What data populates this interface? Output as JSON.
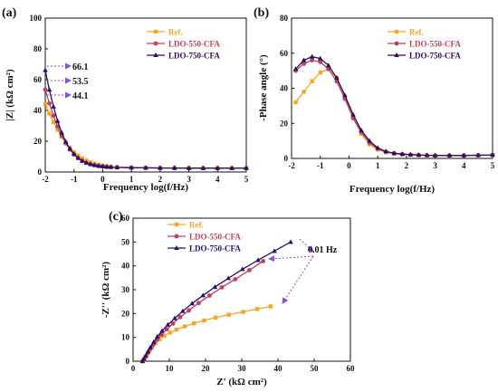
{
  "colors": {
    "ref": "#f5a623",
    "ldo550": "#c0405e",
    "ldo750": "#2a0f6b",
    "arrow": "#8a4de0"
  },
  "chart_data": [
    {
      "type": "line",
      "panel": "(a)",
      "xlabel": "Frequency log(f/Hz)",
      "ylabel": "|Z| (kΩ cm²)",
      "xlim": [
        -2,
        5
      ],
      "ylim": [
        0,
        100
      ],
      "xticks": [
        "-2",
        "-1",
        "0",
        "1",
        "2",
        "3",
        "4",
        "5"
      ],
      "yticks": [
        "0",
        "20",
        "40",
        "60",
        "80",
        "100"
      ],
      "legend_position": "top-right",
      "x": [
        -2.0,
        -1.857,
        -1.714,
        -1.571,
        -1.429,
        -1.286,
        -1.143,
        -1.0,
        -0.857,
        -0.714,
        -0.571,
        -0.429,
        -0.286,
        -0.143,
        0.0,
        0.143,
        0.286,
        0.5,
        1.0,
        1.5,
        2.0,
        2.5,
        3.0,
        3.5,
        4.0,
        4.5,
        5.0
      ],
      "series": [
        {
          "name": "Ref.",
          "marker": "square",
          "values": [
            44.1,
            38.0,
            32.4,
            27.4,
            22.9,
            19.0,
            15.8,
            13.0,
            10.7,
            8.9,
            7.5,
            6.3,
            5.4,
            4.7,
            4.2,
            3.8,
            3.5,
            3.2,
            2.9,
            2.8,
            2.7,
            2.6,
            2.6,
            2.5,
            2.5,
            2.5,
            2.5
          ]
        },
        {
          "name": "LDO-550-CFA",
          "marker": "circle",
          "values": [
            53.5,
            44.6,
            36.6,
            29.6,
            23.6,
            18.6,
            14.6,
            11.4,
            9.0,
            7.1,
            5.9,
            5.0,
            4.4,
            3.9,
            3.6,
            3.3,
            3.1,
            3.0,
            2.8,
            2.7,
            2.6,
            2.6,
            2.5,
            2.5,
            2.5,
            2.5,
            2.5
          ]
        },
        {
          "name": "LDO-750-CFA",
          "marker": "triangle",
          "values": [
            66.1,
            53.4,
            42.4,
            33.1,
            25.6,
            19.7,
            15.1,
            11.7,
            9.1,
            7.3,
            6.0,
            5.1,
            4.5,
            4.0,
            3.7,
            3.4,
            3.2,
            3.0,
            2.8,
            2.7,
            2.6,
            2.6,
            2.5,
            2.5,
            2.5,
            2.5,
            2.5
          ]
        }
      ],
      "annotations": [
        "66.1",
        "53.5",
        "44.1"
      ]
    },
    {
      "type": "line",
      "panel": "(b)",
      "xlabel": "Frequency log(f/Hz)",
      "ylabel": "-Phase angle (°)",
      "xlim": [
        -2,
        5
      ],
      "ylim": [
        0,
        80
      ],
      "xticks": [
        "-2",
        "-1",
        "0",
        "1",
        "2",
        "3",
        "4",
        "5"
      ],
      "yticks": [
        "0",
        "20",
        "40",
        "60",
        "80"
      ],
      "legend_position": "top-right",
      "x": [
        -1.857,
        -1.571,
        -1.286,
        -1.0,
        -0.714,
        -0.429,
        -0.143,
        0.143,
        0.429,
        0.714,
        1.0,
        1.286,
        1.571,
        1.857,
        2.143,
        2.429,
        2.714,
        3.0,
        3.5,
        4.0,
        4.5,
        5.0
      ],
      "series": [
        {
          "name": "Ref.",
          "marker": "square",
          "values": [
            32,
            38,
            44,
            49,
            51,
            46,
            35,
            23,
            14,
            8,
            5,
            3.5,
            2.8,
            2.3,
            2.0,
            1.8,
            1.7,
            1.6,
            1.6,
            1.7,
            1.8,
            2.0
          ]
        },
        {
          "name": "LDO-550-CFA",
          "marker": "circle",
          "values": [
            50,
            54,
            56,
            55,
            51,
            44,
            34,
            23,
            15,
            9,
            5.5,
            3.8,
            2.9,
            2.4,
            2.1,
            1.9,
            1.8,
            1.7,
            1.7,
            1.7,
            1.8,
            2.0
          ]
        },
        {
          "name": "LDO-750-CFA",
          "marker": "triangle",
          "values": [
            51,
            56,
            58,
            57,
            53,
            46,
            36,
            25,
            16,
            10,
            6,
            4,
            3,
            2.5,
            2.2,
            2.0,
            1.8,
            1.7,
            1.7,
            1.7,
            1.8,
            2.0
          ]
        }
      ]
    },
    {
      "type": "line",
      "panel": "(c)",
      "xlabel": "Z' (kΩ cm²)",
      "ylabel": "-Z'' (kΩ cm²)",
      "xlim": [
        0,
        60
      ],
      "ylim": [
        0,
        60
      ],
      "xticks": [
        "0",
        "10",
        "20",
        "30",
        "40",
        "50",
        "60"
      ],
      "yticks": [
        "0",
        "10",
        "20",
        "30",
        "40",
        "50",
        "60"
      ],
      "legend_position": "top-left",
      "annotation": "0.01 Hz",
      "series": [
        {
          "name": "Ref.",
          "marker": "square",
          "x": [
            2.6,
            3.0,
            3.5,
            4.0,
            4.6,
            5.3,
            6.2,
            7.3,
            8.6,
            10.2,
            12.0,
            14.2,
            16.8,
            19.6,
            22.8,
            26.4,
            30.4,
            34.3,
            38.0
          ],
          "y": [
            0,
            0.8,
            1.8,
            3.0,
            4.4,
            6.0,
            7.6,
            9.2,
            10.7,
            12.0,
            13.3,
            14.6,
            15.9,
            17.1,
            18.3,
            19.5,
            20.7,
            21.9,
            23.0
          ]
        },
        {
          "name": "LDO-550-CFA",
          "marker": "circle",
          "x": [
            2.6,
            3.0,
            3.5,
            4.1,
            4.8,
            5.6,
            6.6,
            7.8,
            9.3,
            11.0,
            13.0,
            15.4,
            18.1,
            21.1,
            24.5,
            28.2,
            32.1,
            35.9
          ],
          "y": [
            0,
            0.9,
            2.1,
            3.6,
            5.2,
            7.0,
            9.0,
            11.1,
            13.4,
            15.8,
            18.5,
            21.3,
            24.4,
            27.5,
            31.0,
            34.4,
            38.2,
            42.0
          ]
        },
        {
          "name": "LDO-750-CFA",
          "marker": "triangle",
          "x": [
            2.6,
            3.0,
            3.5,
            4.1,
            4.8,
            5.7,
            6.7,
            8.0,
            9.6,
            11.5,
            13.7,
            16.3,
            19.3,
            22.6,
            26.3,
            30.2,
            34.5,
            39.0,
            43.5
          ],
          "y": [
            0,
            1.0,
            2.3,
            4.0,
            5.9,
            8.0,
            10.3,
            12.7,
            15.3,
            18.0,
            21.0,
            24.2,
            27.6,
            31.1,
            34.8,
            38.6,
            42.4,
            46.2,
            50.0
          ]
        }
      ]
    }
  ]
}
